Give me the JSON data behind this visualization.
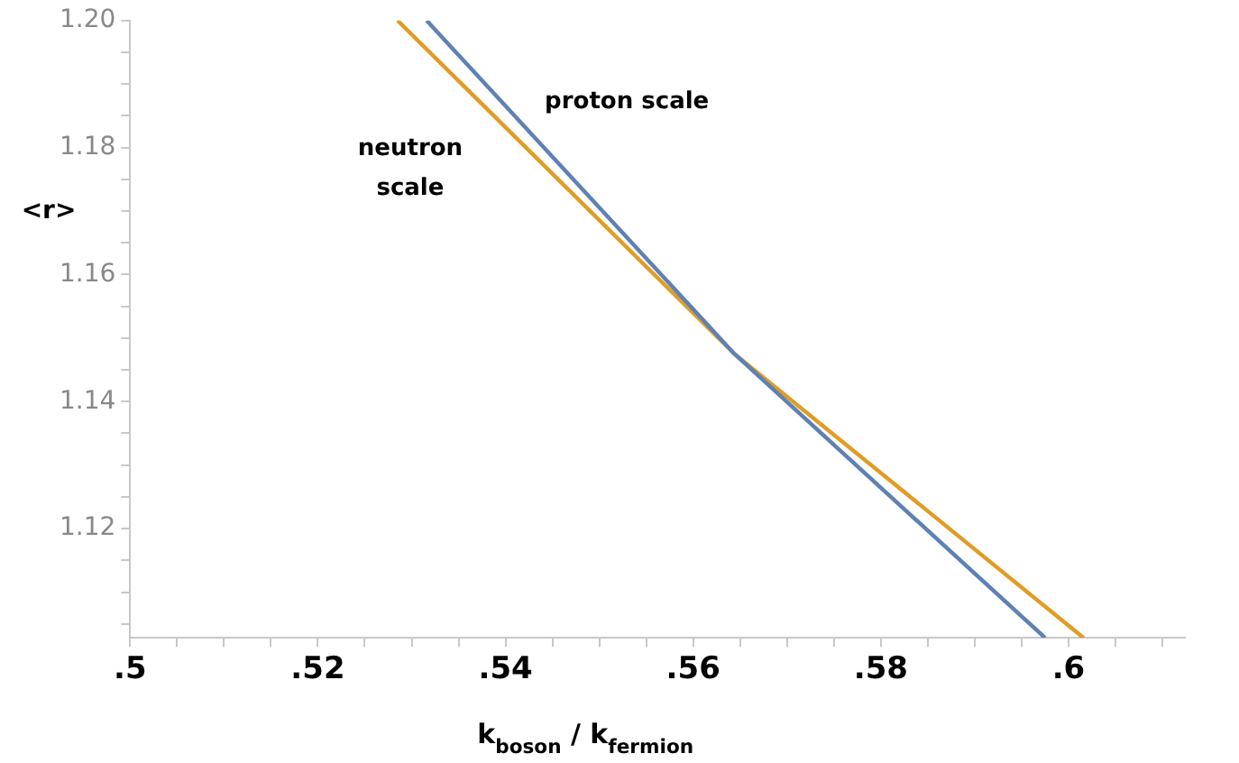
{
  "chart_data": {
    "type": "line",
    "xlabel": "k$_{boson}$ / k$_{fermion}$",
    "ylabel": "<r>",
    "series": [
      {
        "color": "#5e81b5",
        "x": [
          0.5316,
          0.5644,
          0.5975
        ],
        "values": [
          1.2,
          1.1475,
          1.1028
        ]
      },
      {
        "color": "#e19c24",
        "x": [
          0.5285,
          0.5644,
          0.6016
        ],
        "values": [
          1.2,
          1.1475,
          1.1028
        ]
      }
    ],
    "annotations": [
      "proton scale",
      "neutron scale"
    ],
    "xlim": [
      0.5,
      0.6124
    ],
    "xticks": [
      {
        "value": 0.5,
        "label": ".5"
      },
      {
        "value": 0.505,
        "label": null
      },
      {
        "value": 0.51,
        "label": null
      },
      {
        "value": 0.515,
        "label": null
      },
      {
        "value": 0.52,
        "label": ".52"
      },
      {
        "value": 0.525,
        "label": null
      },
      {
        "value": 0.53,
        "label": null
      },
      {
        "value": 0.535,
        "label": null
      },
      {
        "value": 0.54,
        "label": ".54"
      },
      {
        "value": 0.545,
        "label": null
      },
      {
        "value": 0.55,
        "label": null
      },
      {
        "value": 0.555,
        "label": null
      },
      {
        "value": 0.56,
        "label": ".56"
      },
      {
        "value": 0.565,
        "label": null
      },
      {
        "value": 0.57,
        "label": null
      },
      {
        "value": 0.575,
        "label": null
      },
      {
        "value": 0.58,
        "label": ".58"
      },
      {
        "value": 0.585,
        "label": null
      },
      {
        "value": 0.59,
        "label": null
      },
      {
        "value": 0.595,
        "label": null
      },
      {
        "value": 0.6,
        "label": ".6"
      },
      {
        "value": 0.605,
        "label": null
      },
      {
        "value": 0.61,
        "label": null
      }
    ],
    "ylim": [
      1.1028,
      1.2
    ],
    "yticks": [
      {
        "value": 1.105,
        "label": null
      },
      {
        "value": 1.11,
        "label": null
      },
      {
        "value": 1.115,
        "label": null
      },
      {
        "value": 1.12,
        "label": "1.12"
      },
      {
        "value": 1.125,
        "label": null
      },
      {
        "value": 1.13,
        "label": null
      },
      {
        "value": 1.135,
        "label": null
      },
      {
        "value": 1.14,
        "label": "1.14"
      },
      {
        "value": 1.145,
        "label": null
      },
      {
        "value": 1.15,
        "label": null
      },
      {
        "value": 1.155,
        "label": null
      },
      {
        "value": 1.16,
        "label": "1.16"
      },
      {
        "value": 1.165,
        "label": null
      },
      {
        "value": 1.17,
        "label": null
      },
      {
        "value": 1.175,
        "label": null
      },
      {
        "value": 1.18,
        "label": "1.18"
      },
      {
        "value": 1.185,
        "label": null
      },
      {
        "value": 1.19,
        "label": null
      },
      {
        "value": 1.195,
        "label": null
      },
      {
        "value": 1.2,
        "label": "1.20"
      }
    ],
    "grid": false,
    "legend": false,
    "marker": "none",
    "line_style": "solid"
  }
}
